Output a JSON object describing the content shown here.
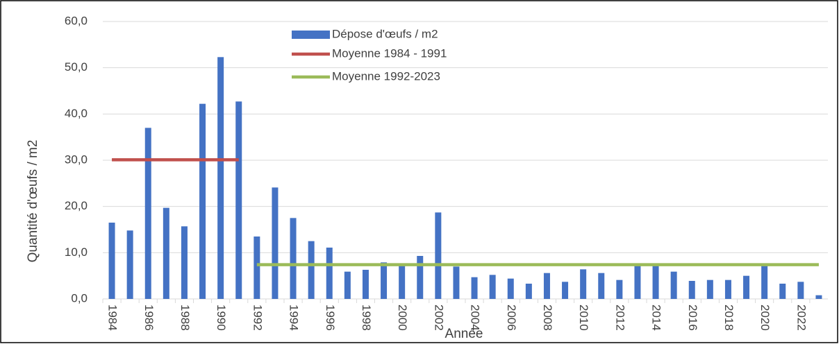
{
  "chart_data": {
    "type": "bar",
    "y_label": "Quantité d'œufs / m2",
    "x_label": "Année",
    "categories": [
      "1984",
      null,
      "1986",
      null,
      "1988",
      null,
      "1990",
      null,
      "1992",
      null,
      "1994",
      null,
      "1996",
      null,
      "1998",
      null,
      "2000",
      null,
      "2002",
      null,
      "2004",
      null,
      "2006",
      null,
      "2008",
      null,
      "2010",
      null,
      "2012",
      null,
      "2014",
      null,
      "2016",
      null,
      "2018",
      null,
      "2020",
      null,
      "2022",
      null
    ],
    "series": [
      {
        "name": "Dépose d'œufs / m2",
        "type": "bar",
        "color": "#4472c4",
        "values": [
          16.5,
          14.8,
          37.0,
          19.7,
          15.7,
          42.2,
          52.3,
          42.7,
          13.5,
          24.1,
          17.5,
          12.5,
          11.1,
          5.9,
          6.3,
          7.9,
          7.2,
          9.3,
          18.7,
          7.0,
          4.7,
          5.2,
          4.4,
          3.3,
          5.6,
          3.7,
          6.4,
          5.6,
          4.1,
          7.3,
          7.4,
          5.9,
          3.9,
          4.1,
          4.1,
          5.0,
          7.2,
          3.3,
          3.7,
          0.8
        ]
      },
      {
        "name": "Moyenne 1984 - 1991",
        "type": "line",
        "color": "#c0504d",
        "values": [
          30.1,
          30.1,
          30.1,
          30.1,
          30.1,
          30.1,
          30.1,
          30.1,
          null,
          null,
          null,
          null,
          null,
          null,
          null,
          null,
          null,
          null,
          null,
          null,
          null,
          null,
          null,
          null,
          null,
          null,
          null,
          null,
          null,
          null,
          null,
          null,
          null,
          null,
          null,
          null,
          null,
          null,
          null,
          null
        ]
      },
      {
        "name": "Moyenne 1992-2023",
        "type": "line",
        "color": "#9bbb59",
        "values": [
          null,
          null,
          null,
          null,
          null,
          null,
          null,
          null,
          7.4,
          7.4,
          7.4,
          7.4,
          7.4,
          7.4,
          7.4,
          7.4,
          7.4,
          7.4,
          7.4,
          7.4,
          7.4,
          7.4,
          7.4,
          7.4,
          7.4,
          7.4,
          7.4,
          7.4,
          7.4,
          7.4,
          7.4,
          7.4,
          7.4,
          7.4,
          7.4,
          7.4,
          7.4,
          7.4,
          7.4,
          7.4
        ]
      }
    ],
    "ylim": [
      0,
      60
    ],
    "yticks": [
      {
        "value": 0,
        "label": "0,0"
      },
      {
        "value": 10,
        "label": "10,0"
      },
      {
        "value": 20,
        "label": "20,0"
      },
      {
        "value": 30,
        "label": "30,0"
      },
      {
        "value": 40,
        "label": "40,0"
      },
      {
        "value": 50,
        "label": "50,0"
      },
      {
        "value": 60,
        "label": "60,0"
      }
    ],
    "grid": true
  }
}
